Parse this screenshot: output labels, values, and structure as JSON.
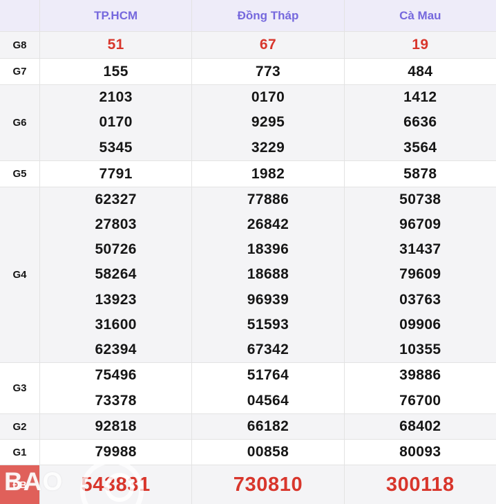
{
  "table": {
    "columns": [
      {
        "label": "TP.HCM"
      },
      {
        "label": "Đồng Tháp"
      },
      {
        "label": "Cà Mau"
      }
    ],
    "rows": [
      {
        "label": "G8",
        "style": "red",
        "values": [
          [
            "51"
          ],
          [
            "67"
          ],
          [
            "19"
          ]
        ]
      },
      {
        "label": "G7",
        "style": "normal",
        "values": [
          [
            "155"
          ],
          [
            "773"
          ],
          [
            "484"
          ]
        ]
      },
      {
        "label": "G6",
        "style": "normal",
        "values": [
          [
            "2103",
            "0170",
            "5345"
          ],
          [
            "0170",
            "9295",
            "3229"
          ],
          [
            "1412",
            "6636",
            "3564"
          ]
        ]
      },
      {
        "label": "G5",
        "style": "normal",
        "values": [
          [
            "7791"
          ],
          [
            "1982"
          ],
          [
            "5878"
          ]
        ]
      },
      {
        "label": "G4",
        "style": "normal",
        "values": [
          [
            "62327",
            "27803",
            "50726",
            "58264",
            "13923",
            "31600",
            "62394"
          ],
          [
            "77886",
            "26842",
            "18396",
            "18688",
            "96939",
            "51593",
            "67342"
          ],
          [
            "50738",
            "96709",
            "31437",
            "79609",
            "03763",
            "09906",
            "10355"
          ]
        ]
      },
      {
        "label": "G3",
        "style": "normal",
        "values": [
          [
            "75496",
            "73378"
          ],
          [
            "51764",
            "04564"
          ],
          [
            "39886",
            "76700"
          ]
        ]
      },
      {
        "label": "G2",
        "style": "normal",
        "values": [
          [
            "92818"
          ],
          [
            "66182"
          ],
          [
            "68402"
          ]
        ]
      },
      {
        "label": "G1",
        "style": "normal",
        "values": [
          [
            "79988"
          ],
          [
            "00858"
          ],
          [
            "80093"
          ]
        ]
      },
      {
        "label": "ĐB",
        "style": "special",
        "values": [
          [
            "543831"
          ],
          [
            "730810"
          ],
          [
            "300118"
          ]
        ]
      }
    ]
  },
  "watermark": {
    "text": "BAO"
  },
  "colors": {
    "header_bg": "#eeecf9",
    "header_text": "#7568dd",
    "stripe_bg": "#f4f4f6",
    "red_text": "#d8362c",
    "special_label_bg": "#e0605a",
    "border": "#e3e3e3",
    "text": "#161616"
  }
}
